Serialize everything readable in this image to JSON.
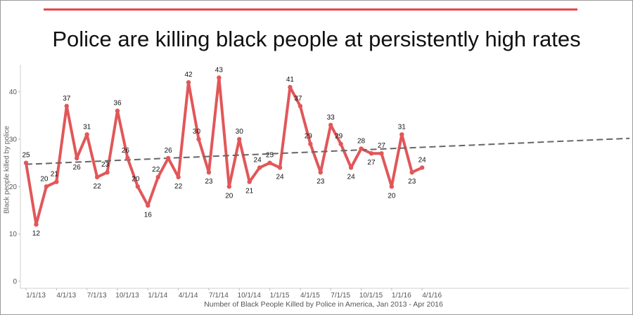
{
  "title": "Police are killing black people at persistently high rates",
  "chart_data": {
    "type": "line",
    "title": "Police are killing black people at persistently high rates",
    "xlabel": "Number of Black People Killed by Police in America, Jan 2013 - Apr 2016",
    "ylabel": "Black people killed by police",
    "ylim": [
      0,
      45
    ],
    "yticks": [
      0,
      10,
      20,
      30,
      40
    ],
    "grid": false,
    "x": [
      "2013-01",
      "2013-02",
      "2013-03",
      "2013-04",
      "2013-05",
      "2013-06",
      "2013-07",
      "2013-08",
      "2013-09",
      "2013-10",
      "2013-11",
      "2013-12",
      "2014-01",
      "2014-02",
      "2014-03",
      "2014-04",
      "2014-05",
      "2014-06",
      "2014-07",
      "2014-08",
      "2014-09",
      "2014-10",
      "2014-11",
      "2014-12",
      "2015-01",
      "2015-02",
      "2015-03",
      "2015-04",
      "2015-05",
      "2015-06",
      "2015-07",
      "2015-08",
      "2015-09",
      "2015-10",
      "2015-11",
      "2015-12",
      "2016-01",
      "2016-02",
      "2016-03",
      "2016-04"
    ],
    "x_tick_labels": [
      "1/1/13",
      "4/1/13",
      "7/1/13",
      "10/1/13",
      "1/1/14",
      "4/1/14",
      "7/1/14",
      "10/1/14",
      "1/1/15",
      "4/1/15",
      "7/1/15",
      "10/1/15",
      "1/1/16",
      "4/1/16"
    ],
    "series": [
      {
        "color": "#e15759",
        "values": [
          25,
          12,
          20,
          21,
          37,
          26,
          31,
          22,
          23,
          36,
          26,
          20,
          16,
          22,
          26,
          22,
          42,
          30,
          23,
          43,
          20,
          30,
          21,
          24,
          25,
          24,
          41,
          37,
          29,
          23,
          33,
          29,
          24,
          28,
          27,
          27,
          20,
          31,
          23,
          24
        ]
      }
    ],
    "trend": {
      "start": 24.7,
      "end": 28.3,
      "color": "#666666",
      "style": "dashed"
    }
  }
}
